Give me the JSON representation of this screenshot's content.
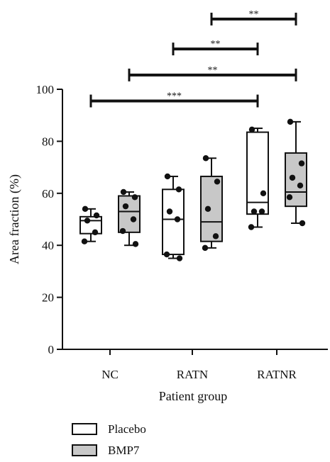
{
  "chart_data": {
    "type": "box",
    "title": "",
    "xlabel": "Patient group",
    "ylabel": "Area fraction (%)",
    "ylim": [
      0,
      100
    ],
    "yticks": [
      0,
      20,
      40,
      60,
      80,
      100
    ],
    "categories": [
      "NC",
      "RATN",
      "RATNR"
    ],
    "legend_position": "bottom-left",
    "series": [
      {
        "name": "Placebo",
        "fill": "#ffffff",
        "boxes": [
          {
            "min": 41.5,
            "q1": 44.5,
            "median": 49.5,
            "q3": 51.0,
            "max": 54.0,
            "points": [
              54.0,
              51.5,
              49.5,
              45.0,
              41.5
            ]
          },
          {
            "min": 35.0,
            "q1": 36.5,
            "median": 50.0,
            "q3": 61.5,
            "max": 66.5,
            "points": [
              66.5,
              61.5,
              53.0,
              50.0,
              36.5,
              35.0
            ]
          },
          {
            "min": 47.0,
            "q1": 52.0,
            "median": 56.5,
            "q3": 83.5,
            "max": 85.0,
            "points": [
              84.5,
              60.0,
              53.0,
              53.0,
              47.0
            ]
          }
        ]
      },
      {
        "name": "BMP7",
        "fill": "#c8c8c8",
        "boxes": [
          {
            "min": 40.0,
            "q1": 45.0,
            "median": 53.0,
            "q3": 59.0,
            "max": 60.5,
            "points": [
              60.5,
              58.5,
              55.0,
              50.0,
              45.5,
              40.5
            ]
          },
          {
            "min": 39.0,
            "q1": 41.5,
            "median": 49.0,
            "q3": 66.5,
            "max": 73.5,
            "points": [
              73.5,
              64.5,
              54.0,
              43.5,
              39.0
            ]
          },
          {
            "min": 48.5,
            "q1": 55.0,
            "median": 60.5,
            "q3": 75.5,
            "max": 87.5,
            "points": [
              87.5,
              71.5,
              66.0,
              63.0,
              58.5,
              48.5
            ]
          }
        ]
      }
    ],
    "significance": [
      {
        "from": [
          "NC",
          "Placebo"
        ],
        "to": [
          "RATNR",
          "Placebo"
        ],
        "label": "***",
        "height": 95.5
      },
      {
        "from": [
          "NC",
          "BMP7"
        ],
        "to": [
          "RATNR",
          "BMP7"
        ],
        "label": "**",
        "height": 105.5
      },
      {
        "from": [
          "RATN",
          "Placebo"
        ],
        "to": [
          "RATNR",
          "Placebo"
        ],
        "label": "**",
        "height": 115.5
      },
      {
        "from": [
          "RATN",
          "BMP7"
        ],
        "to": [
          "RATNR",
          "BMP7"
        ],
        "label": "**",
        "height": 127.0
      }
    ]
  }
}
